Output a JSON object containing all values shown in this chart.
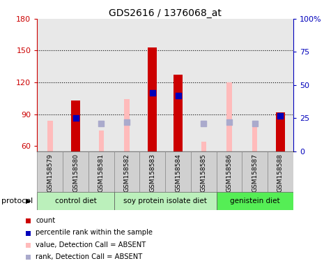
{
  "title": "GDS2616 / 1376068_at",
  "samples": [
    "GSM158579",
    "GSM158580",
    "GSM158581",
    "GSM158582",
    "GSM158583",
    "GSM158584",
    "GSM158585",
    "GSM158586",
    "GSM158587",
    "GSM158588"
  ],
  "ylim_left": [
    55,
    180
  ],
  "ylim_right": [
    0,
    100
  ],
  "yticks_left": [
    60,
    90,
    120,
    150,
    180
  ],
  "yticks_right": [
    0,
    25,
    50,
    75,
    100
  ],
  "left_color": "#cc0000",
  "right_color": "#0000bb",
  "count_values": [
    0,
    103,
    0,
    0,
    153,
    127,
    0,
    0,
    0,
    92
  ],
  "rank_values": [
    0,
    25,
    0,
    0,
    44,
    42,
    0,
    0,
    0,
    27
  ],
  "absent_value_values": [
    84,
    0,
    75,
    104,
    0,
    0,
    64,
    120,
    80,
    0
  ],
  "absent_rank_values": [
    0,
    0,
    21,
    22,
    0,
    0,
    21,
    22,
    21,
    0
  ],
  "group_defs": [
    {
      "start": 0,
      "end": 2,
      "name": "control diet",
      "color": "#bbf0bb"
    },
    {
      "start": 3,
      "end": 6,
      "name": "soy protein isolate diet",
      "color": "#bbf0bb"
    },
    {
      "start": 7,
      "end": 9,
      "name": "genistein diet",
      "color": "#55ee55"
    }
  ],
  "bar_width": 0.35,
  "absent_bar_width": 0.2,
  "count_color": "#cc0000",
  "rank_color": "#0000bb",
  "absent_val_color": "#ffbbbb",
  "absent_rank_color": "#aaaacc",
  "plot_bg": "#e8e8e8",
  "gridline_color": "black",
  "legend_labels": [
    "count",
    "percentile rank within the sample",
    "value, Detection Call = ABSENT",
    "rank, Detection Call = ABSENT"
  ],
  "legend_colors": [
    "#cc0000",
    "#0000bb",
    "#ffbbbb",
    "#aaaacc"
  ]
}
